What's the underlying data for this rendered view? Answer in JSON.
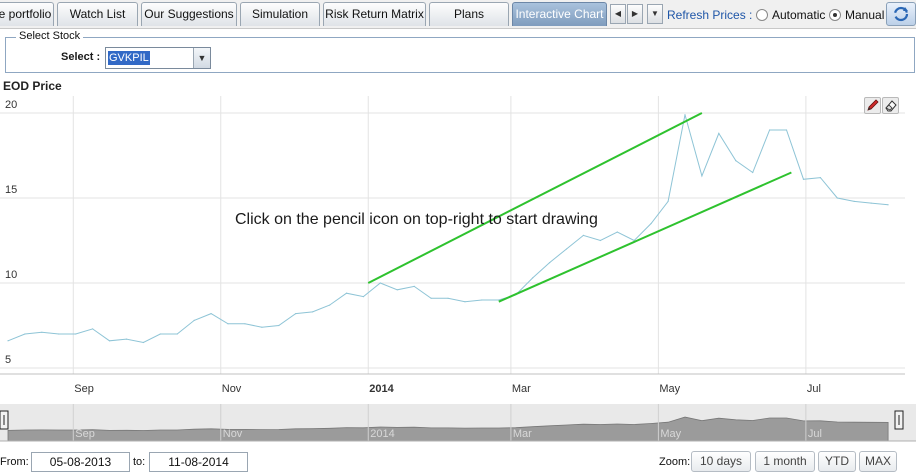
{
  "tabs": [
    {
      "label": "e portfolio",
      "active": false
    },
    {
      "label": "Watch List",
      "active": false
    },
    {
      "label": "Our Suggestions",
      "active": false
    },
    {
      "label": "Simulation",
      "active": false
    },
    {
      "label": "Risk Return Matrix",
      "active": false
    },
    {
      "label": "Plans",
      "active": false
    },
    {
      "label": "Interactive Chart",
      "active": true
    }
  ],
  "refresh": {
    "label": "Refresh Prices :",
    "options": [
      {
        "label": "Automatic",
        "selected": false
      },
      {
        "label": "Manual",
        "selected": true
      }
    ]
  },
  "stock_selector": {
    "legend": "Select Stock",
    "label": "Select :",
    "value": "GVKPIL"
  },
  "chart": {
    "title": "EOD Price",
    "hint": "Click on the pencil icon on top-right to start drawing",
    "tools": [
      "pencil-icon",
      "eraser-icon"
    ]
  },
  "chart_data": {
    "type": "line",
    "title": "EOD Price",
    "xlabel": "",
    "ylabel": "",
    "ylim": [
      5,
      21
    ],
    "grid": true,
    "x_tick_labels": [
      "Sep",
      "Nov",
      "2014",
      "Mar",
      "May",
      "Jul"
    ],
    "y_tick_labels": [
      "5",
      "10",
      "15",
      "20"
    ],
    "series": [
      {
        "color": "#8ec4d6",
        "x": [
          "2013-08-05",
          "2013-08-12",
          "2013-08-19",
          "2013-08-26",
          "2013-09-02",
          "2013-09-09",
          "2013-09-16",
          "2013-09-23",
          "2013-09-30",
          "2013-10-07",
          "2013-10-14",
          "2013-10-21",
          "2013-10-28",
          "2013-11-04",
          "2013-11-11",
          "2013-11-18",
          "2013-11-25",
          "2013-12-02",
          "2013-12-09",
          "2013-12-16",
          "2013-12-23",
          "2013-12-30",
          "2014-01-06",
          "2014-01-13",
          "2014-01-20",
          "2014-01-27",
          "2014-02-03",
          "2014-02-10",
          "2014-02-17",
          "2014-02-24",
          "2014-03-03",
          "2014-03-10",
          "2014-03-17",
          "2014-03-24",
          "2014-03-31",
          "2014-04-07",
          "2014-04-14",
          "2014-04-21",
          "2014-04-28",
          "2014-05-05",
          "2014-05-12",
          "2014-05-19",
          "2014-05-26",
          "2014-06-02",
          "2014-06-09",
          "2014-06-16",
          "2014-06-23",
          "2014-06-30",
          "2014-07-07",
          "2014-07-14",
          "2014-07-21",
          "2014-07-28",
          "2014-08-04"
        ],
        "y": [
          6.6,
          7.0,
          7.1,
          7.0,
          7.0,
          7.3,
          6.6,
          6.7,
          6.5,
          7.0,
          7.0,
          7.8,
          8.2,
          7.6,
          7.6,
          7.4,
          7.5,
          8.2,
          8.3,
          8.7,
          9.4,
          9.2,
          10.0,
          9.6,
          9.8,
          9.1,
          9.1,
          8.9,
          9.0,
          9.0,
          9.3,
          10.3,
          11.2,
          12.0,
          12.8,
          12.5,
          13.0,
          12.5,
          13.5,
          14.8,
          19.9,
          16.3,
          18.8,
          17.2,
          16.5,
          19.0,
          19.0,
          16.1,
          16.2,
          15.0,
          14.8,
          14.7,
          14.6
        ]
      }
    ],
    "trend_lines": [
      {
        "color": "#2ec22e",
        "x": [
          "2014-01-01",
          "2014-05-19"
        ],
        "y": [
          10.0,
          20.0
        ]
      },
      {
        "color": "#2ec22e",
        "x": [
          "2014-02-24",
          "2014-06-25"
        ],
        "y": [
          8.9,
          16.5
        ]
      }
    ],
    "navigator": {
      "x_tick_labels": [
        "Sep",
        "Nov",
        "2014",
        "Mar",
        "May",
        "Jul"
      ]
    }
  },
  "date_range": {
    "from_label": "From:",
    "from_value": "05-08-2013",
    "to_label": "to:",
    "to_value": "11-08-2014"
  },
  "zoom": {
    "label": "Zoom:",
    "buttons": [
      "10 days",
      "1 month",
      "YTD",
      "MAX"
    ]
  }
}
